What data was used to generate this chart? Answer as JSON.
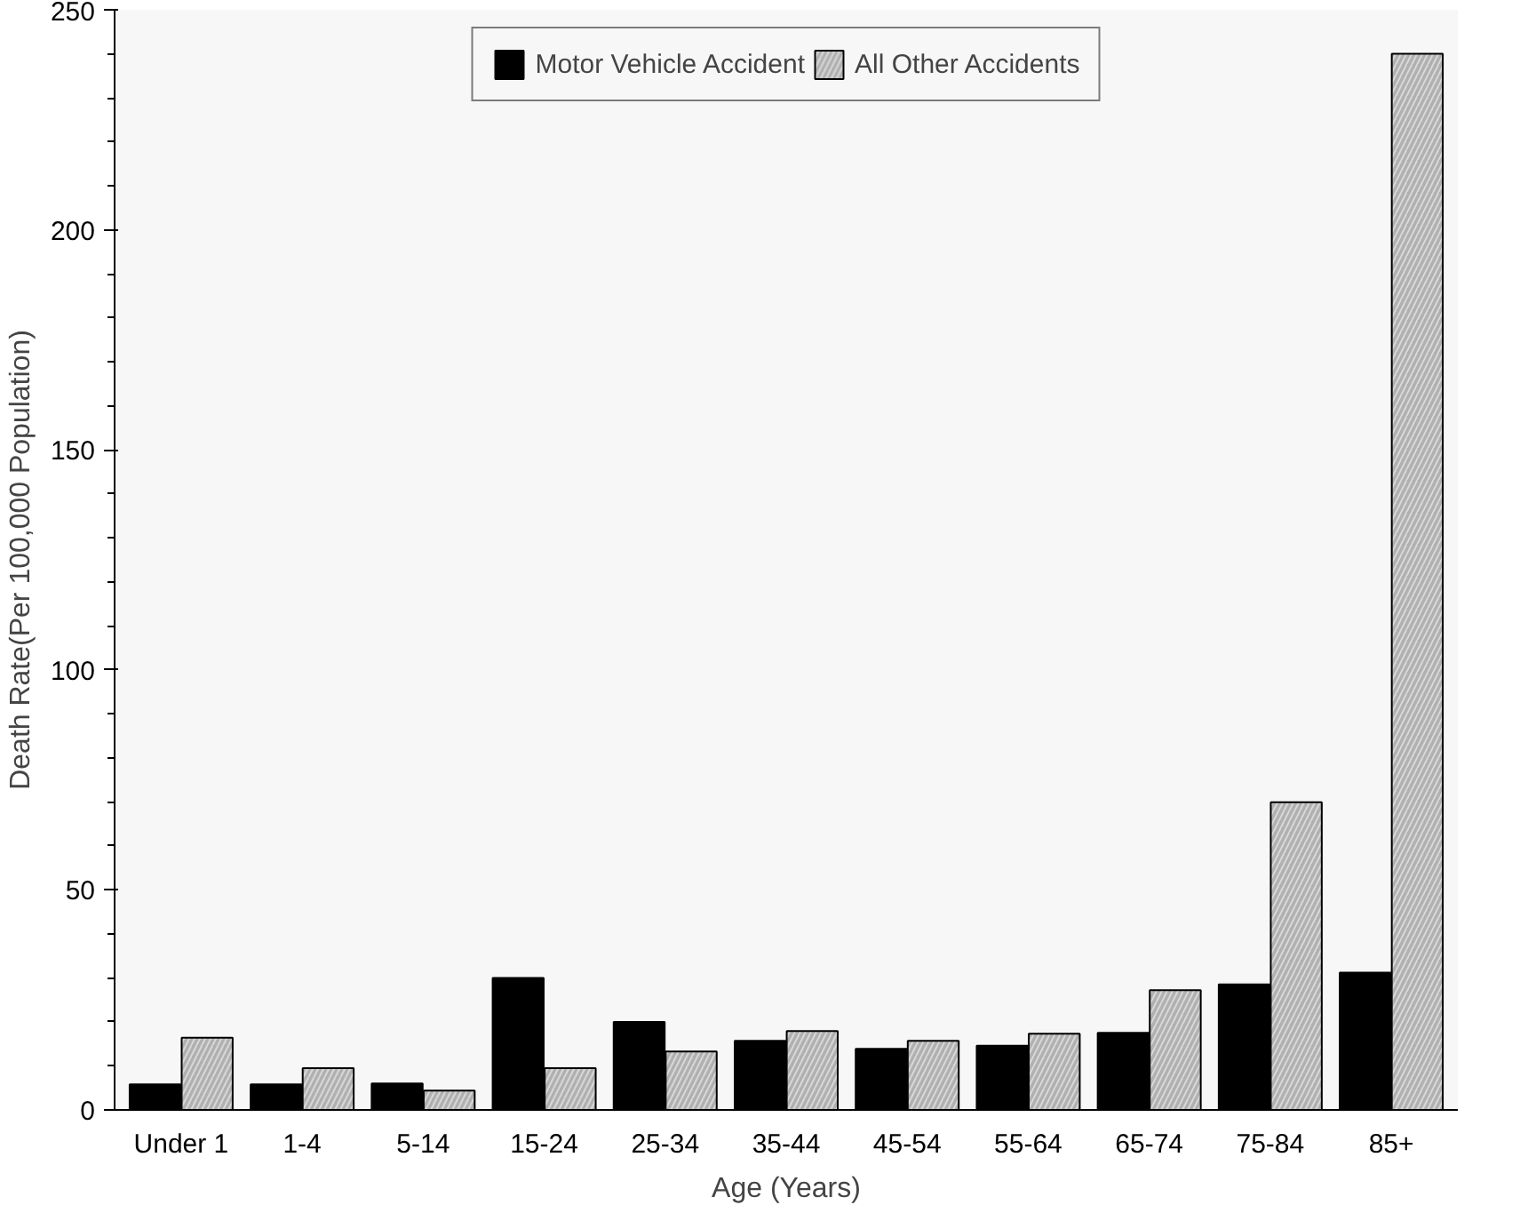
{
  "chart_data": {
    "type": "bar",
    "xlabel": "Age (Years)",
    "ylabel": "Death Rate(Per 100,000 Population)",
    "categories": [
      "Under 1",
      "1-4",
      "5-14",
      "15-24",
      "25-34",
      "35-44",
      "45-54",
      "55-64",
      "65-74",
      "75-84",
      "85+"
    ],
    "series": [
      {
        "name": "Motor Vehicle Accident",
        "color": "#000000",
        "values": [
          5.8,
          5.8,
          6,
          30,
          20,
          15.7,
          13.9,
          14.6,
          17.5,
          28.5,
          31.2
        ]
      },
      {
        "name": "All Other Accidents",
        "color": "#b0b0b0",
        "values": [
          16.4,
          9.5,
          4.4,
          9.5,
          13.3,
          17.9,
          15.7,
          17.3,
          27.2,
          69.9,
          240
        ]
      }
    ],
    "ylim": [
      0,
      250
    ],
    "yticks": [
      0,
      50,
      100,
      150,
      200,
      250
    ],
    "grid": false,
    "legend": "top"
  }
}
